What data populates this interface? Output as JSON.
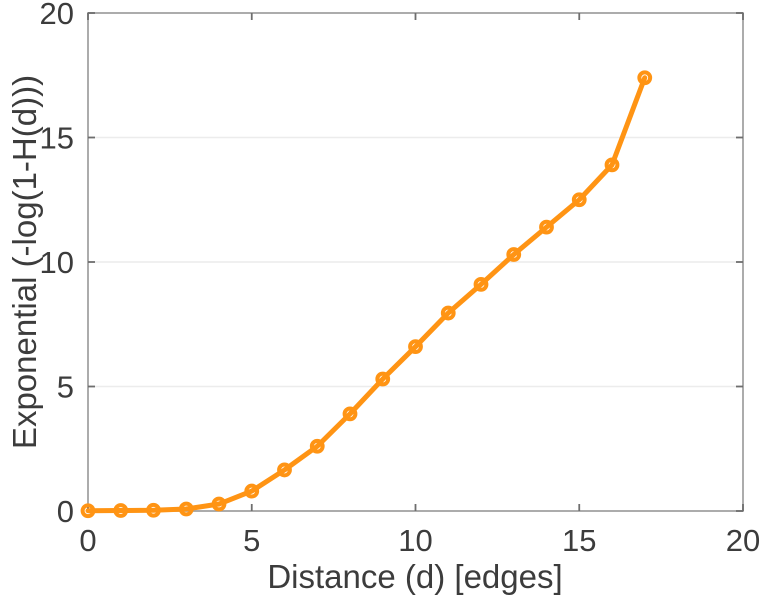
{
  "figure": {
    "background": "#FFFFFF"
  },
  "chart_data": {
    "type": "line",
    "title": "",
    "xlabel": "Distance (d) [edges]",
    "ylabel": "Exponential (-log(1-H(d)))",
    "x": [
      0,
      1,
      2,
      3,
      4,
      5,
      6,
      7,
      8,
      9,
      10,
      11,
      12,
      13,
      14,
      15,
      16,
      17
    ],
    "values": [
      0.01,
      0.02,
      0.03,
      0.08,
      0.28,
      0.8,
      1.65,
      2.6,
      3.9,
      5.3,
      6.6,
      7.95,
      9.1,
      10.3,
      11.4,
      12.5,
      13.9,
      17.4
    ],
    "xlim": [
      0,
      20
    ],
    "ylim": [
      0,
      20
    ],
    "xticks": [
      0,
      5,
      10,
      15,
      20
    ],
    "yticks": [
      0,
      5,
      10,
      15,
      20
    ],
    "grid": "horizontal-only",
    "legend": "none",
    "marker": "open-circle",
    "style": {
      "line_color": "#FF9414",
      "line_width": 5,
      "marker_radius": 5.4,
      "marker_stroke_width": 4,
      "box_color": "#9D9D9D",
      "tick_color": "#6E6E6E",
      "grid_color": "#ECECEC",
      "label_color": "#3C3C3C"
    }
  }
}
